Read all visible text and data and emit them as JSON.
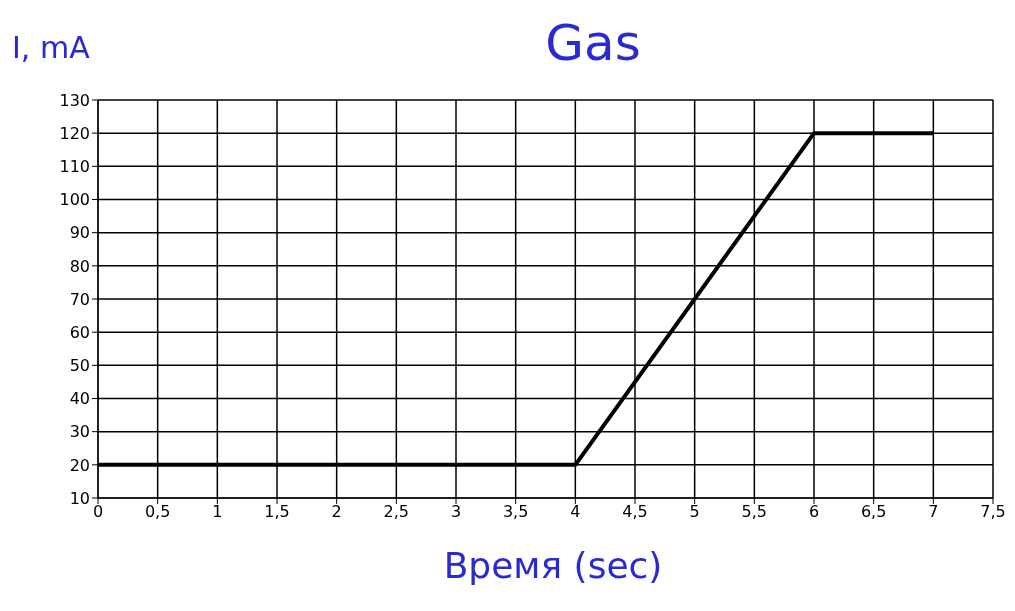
{
  "chart_data": {
    "type": "line",
    "title": "Gas",
    "ylabel": "I, mA",
    "xlabel": "Время  (sec)",
    "x": [
      0,
      4,
      6,
      7
    ],
    "series": [
      {
        "color": "#000000",
        "values": [
          20,
          20,
          120,
          120
        ]
      }
    ],
    "xlim": [
      0,
      7.5
    ],
    "xticks": [
      0,
      {
        "value": 0.5,
        "label": "0,5"
      },
      1,
      {
        "value": 1.5,
        "label": "1,5"
      },
      2,
      {
        "value": 2.5,
        "label": "2,5"
      },
      3,
      {
        "value": 3.5,
        "label": "3,5"
      },
      4,
      {
        "value": 4.5,
        "label": "4,5"
      },
      5,
      {
        "value": 5.5,
        "label": "5,5"
      },
      6,
      {
        "value": 6.5,
        "label": "6,5"
      },
      7,
      {
        "value": 7.5,
        "label": "7,5"
      }
    ],
    "ylim": [
      10,
      130
    ],
    "yticks": [
      10,
      20,
      30,
      40,
      50,
      60,
      70,
      80,
      90,
      100,
      110,
      120,
      130
    ],
    "grid": true,
    "marker": "none",
    "line_style": "solid",
    "legend": false
  }
}
